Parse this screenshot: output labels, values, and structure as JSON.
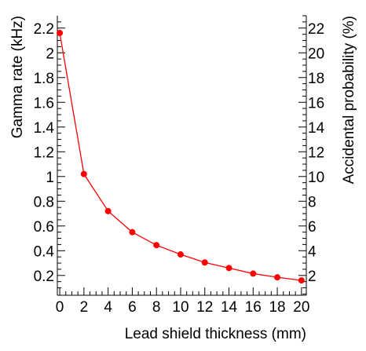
{
  "chart_data": {
    "type": "line",
    "title": "",
    "xlabel": "Lead shield thickness (mm)",
    "ylabel": "Gamma rate (kHz)",
    "y2label": "Accidental probability (%)",
    "xlim": [
      -0.2,
      20.4
    ],
    "ylim": [
      0.04,
      2.3
    ],
    "y2lim": [
      0.4,
      23.0
    ],
    "x_ticks": [
      0,
      2,
      4,
      6,
      8,
      10,
      12,
      14,
      16,
      18,
      20
    ],
    "y_ticks": [
      0.2,
      0.4,
      0.6,
      0.8,
      1,
      1.2,
      1.4,
      1.6,
      1.8,
      2,
      2.2
    ],
    "y2_ticks": [
      2,
      4,
      6,
      8,
      10,
      12,
      14,
      16,
      18,
      20,
      22
    ],
    "grid": false,
    "legend": "none",
    "series": [
      {
        "color": "#ff0000",
        "x": [
          0,
          2,
          4,
          6,
          8,
          10,
          12,
          14,
          16,
          18,
          20
        ],
        "y": [
          2.16,
          1.02,
          0.72,
          0.55,
          0.445,
          0.37,
          0.305,
          0.26,
          0.215,
          0.185,
          0.16
        ]
      }
    ]
  }
}
